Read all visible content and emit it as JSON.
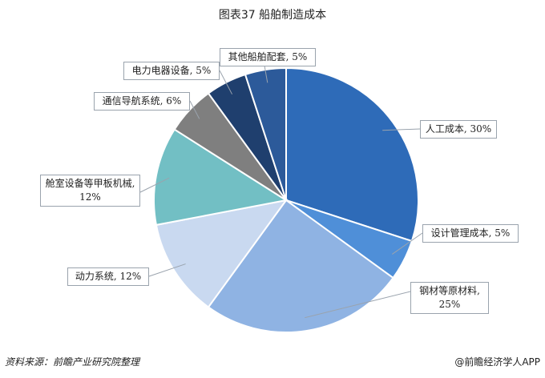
{
  "chart_data": {
    "type": "pie",
    "title": "图表37 船舶制造成本",
    "values": [
      30,
      5,
      25,
      12,
      12,
      6,
      5,
      5
    ],
    "value_labels": [
      "人工成本, 30%",
      "设计管理成本, 5%",
      "钢材等原材料, 25%",
      "动力系统, 12%",
      "舱室设备等甲板机械, 12%",
      "通信导航系统, 6%",
      "电力电器设备, 5%",
      "其他船舶配套, 5%"
    ],
    "colors": [
      "#2e6bb8",
      "#4f8fd8",
      "#8fb3e3",
      "#c9d9f0",
      "#72bfc4",
      "#7f7f7f",
      "#1f3f6e",
      "#2c5a9a"
    ],
    "source": "资料来源：前瞻产业研究院整理",
    "brand": "@前瞻经济学人APP"
  }
}
